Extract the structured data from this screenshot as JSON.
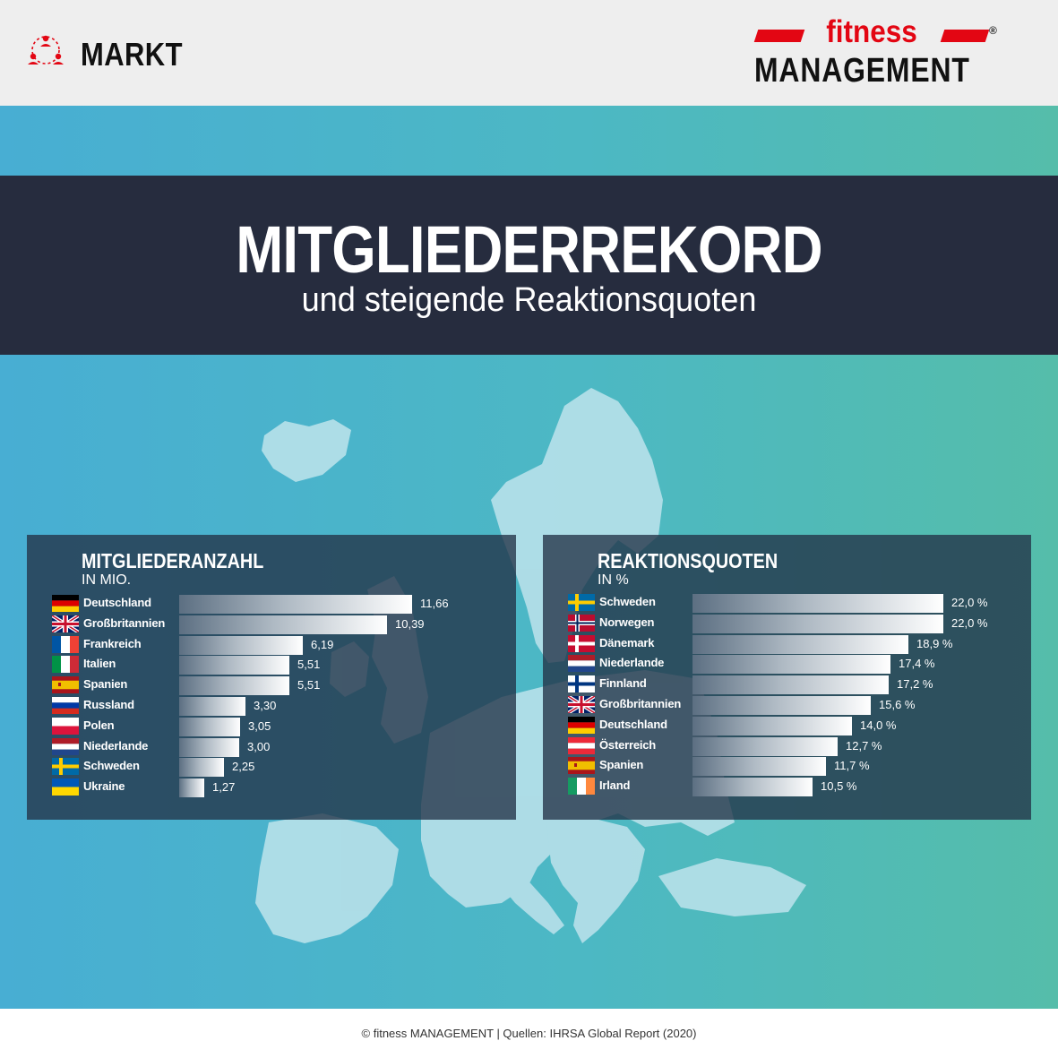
{
  "header": {
    "section_label": "MARKT",
    "logo_top": "fitness",
    "logo_bottom": "MANAGEMENT",
    "logo_reg": "®"
  },
  "title": {
    "main": "MITGLIEDERREKORD",
    "sub": "und steigende Reaktionsquoten"
  },
  "colors": {
    "brand_red": "#e30613",
    "title_bg": "#262c3e",
    "band_left": "#48aed3",
    "band_right": "#55bdaa",
    "map": "#b6e0ea"
  },
  "footer": {
    "source": "© fitness MANAGEMENT  |  Quellen: IHRSA Global Report (2020)"
  },
  "chart_data": [
    {
      "type": "bar",
      "orientation": "horizontal",
      "title": "MITGLIEDERANZAHL",
      "subtitle": "IN MIO.",
      "categories": [
        "Deutschland",
        "Großbritannien",
        "Frankreich",
        "Italien",
        "Spanien",
        "Russland",
        "Polen",
        "Niederlande",
        "Schweden",
        "Ukraine"
      ],
      "values": [
        11.66,
        10.39,
        6.19,
        5.51,
        5.51,
        3.3,
        3.05,
        3.0,
        2.25,
        1.27
      ],
      "labels": [
        "11,66",
        "10,39",
        "6,19",
        "5,51",
        "5,51",
        "3,30",
        "3,05",
        "3,00",
        "2,25",
        "1,27"
      ],
      "flags": [
        "de",
        "gb",
        "fr",
        "it",
        "es",
        "ru",
        "pl",
        "nl",
        "se",
        "ua"
      ],
      "xlim": [
        0,
        11.66
      ]
    },
    {
      "type": "bar",
      "orientation": "horizontal",
      "title": "REAKTIONSQUOTEN",
      "subtitle": "IN %",
      "categories": [
        "Schweden",
        "Norwegen",
        "Dänemark",
        "Niederlande",
        "Finnland",
        "Großbritannien",
        "Deutschland",
        "Österreich",
        "Spanien",
        "Irland"
      ],
      "values": [
        22.0,
        22.0,
        18.9,
        17.4,
        17.2,
        15.6,
        14.0,
        12.7,
        11.7,
        10.5
      ],
      "labels": [
        "22,0 %",
        "22,0 %",
        "18,9 %",
        "17,4 %",
        "17,2 %",
        "15,6 %",
        "14,0 %",
        "12,7 %",
        "11,7 %",
        "10,5 %"
      ],
      "flags": [
        "se",
        "no",
        "dk",
        "nl",
        "fi",
        "gb",
        "de",
        "at",
        "es",
        "ie"
      ],
      "xlim": [
        0,
        22.0
      ]
    }
  ]
}
